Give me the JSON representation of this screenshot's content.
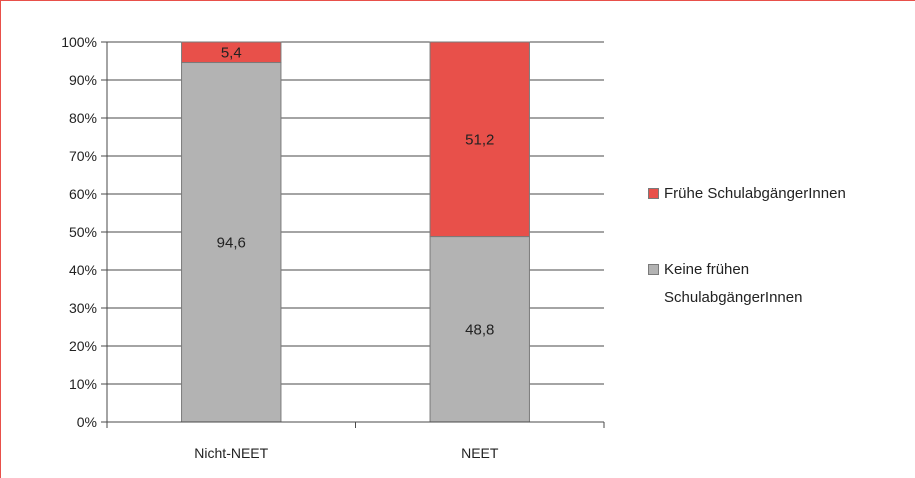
{
  "chart_data": {
    "type": "bar",
    "stacked": true,
    "categories": [
      "Nicht-NEET",
      "NEET"
    ],
    "series": [
      {
        "name": "Keine frühen SchulabgängerInnen",
        "values": [
          94.6,
          48.8
        ],
        "labels": [
          "94,6",
          "48,8"
        ],
        "color": "#b3b3b3"
      },
      {
        "name": "Frühe SchulabgängerInnen",
        "values": [
          5.4,
          51.2
        ],
        "labels": [
          "5,4",
          "51,2"
        ],
        "color": "#e8504a"
      }
    ],
    "y_ticks": [
      "0%",
      "10%",
      "20%",
      "30%",
      "40%",
      "50%",
      "60%",
      "70%",
      "80%",
      "90%",
      "100%"
    ],
    "ylim": [
      0,
      100
    ],
    "grid": true,
    "legend_position": "right",
    "legend": [
      {
        "label": "Frühe SchulabgängerInnen",
        "color": "#e8504a"
      },
      {
        "label_lines": [
          "Keine frühen",
          "SchulabgängerInnen"
        ],
        "color": "#b3b3b3"
      }
    ]
  }
}
